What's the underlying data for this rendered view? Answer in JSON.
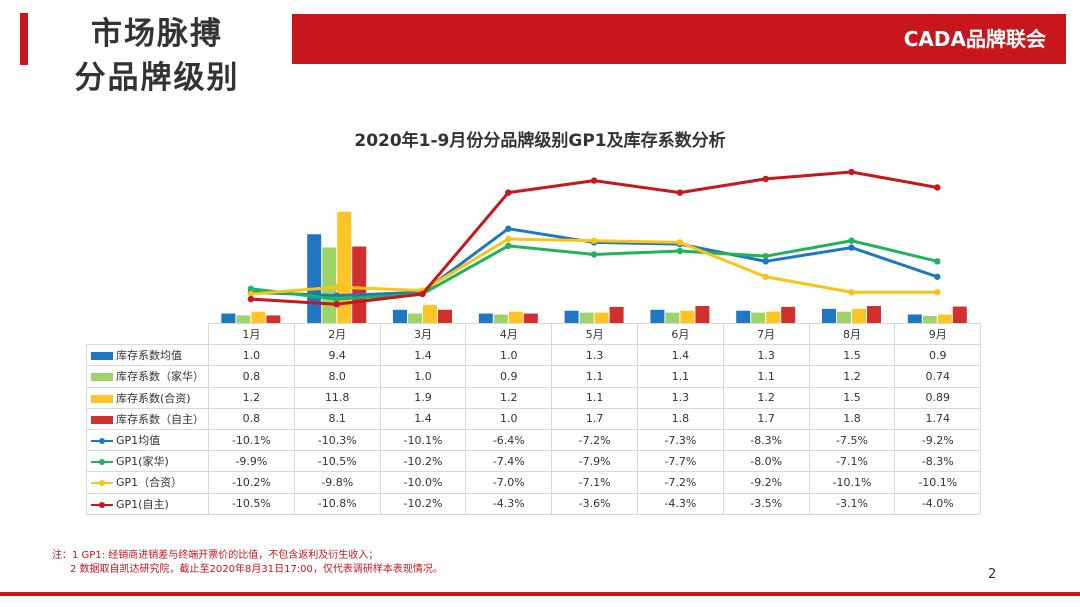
{
  "header": {
    "title_line1": "市场脉搏",
    "title_line2": "分品牌级别",
    "brand": "CADA品牌联会"
  },
  "colors": {
    "accent": "#c8161d",
    "inv_avg": "#1f77c4",
    "inv_joint": "#9ed36a",
    "inv_foreign": "#ffc425",
    "inv_own": "#d32f2f",
    "gp_avg": "#1f77c4",
    "gp_joint": "#21b35c",
    "gp_foreign": "#f5c518",
    "gp_own": "#c8161d"
  },
  "chart_data": {
    "type": "bar+line",
    "title": "2020年1-9月份分品牌级别GP1及库存系数分析",
    "categories": [
      "1月",
      "2月",
      "3月",
      "4月",
      "5月",
      "6月",
      "7月",
      "8月",
      "9月"
    ],
    "bar_series": [
      {
        "name": "库存系数均值",
        "color_key": "inv_avg",
        "values": [
          1.0,
          9.4,
          1.4,
          1.0,
          1.3,
          1.4,
          1.3,
          1.5,
          0.9
        ],
        "labels": [
          "1.0",
          "9.4",
          "1.4",
          "1.0",
          "1.3",
          "1.4",
          "1.3",
          "1.5",
          "0.9"
        ]
      },
      {
        "name": "库存系数（家华）",
        "color_key": "inv_joint",
        "values": [
          0.8,
          8.0,
          1.0,
          0.9,
          1.1,
          1.1,
          1.1,
          1.2,
          0.74
        ],
        "labels": [
          "0.8",
          "8.0",
          "1.0",
          "0.9",
          "1.1",
          "1.1",
          "1.1",
          "1.2",
          "0.74"
        ]
      },
      {
        "name": "库存系数(合资)",
        "color_key": "inv_foreign",
        "values": [
          1.2,
          11.8,
          1.9,
          1.2,
          1.1,
          1.3,
          1.2,
          1.5,
          0.89
        ],
        "labels": [
          "1.2",
          "11.8",
          "1.9",
          "1.2",
          "1.1",
          "1.3",
          "1.2",
          "1.5",
          "0.89"
        ]
      },
      {
        "name": "库存系数（自主）",
        "color_key": "inv_own",
        "values": [
          0.8,
          8.1,
          1.4,
          1.0,
          1.7,
          1.8,
          1.7,
          1.8,
          1.74
        ],
        "labels": [
          "0.8",
          "8.1",
          "1.4",
          "1.0",
          "1.7",
          "1.8",
          "1.7",
          "1.8",
          "1.74"
        ]
      }
    ],
    "line_series": [
      {
        "name": "GP1均值",
        "color_key": "gp_avg",
        "values": [
          -10.1,
          -10.3,
          -10.1,
          -6.4,
          -7.2,
          -7.3,
          -8.3,
          -7.5,
          -9.2
        ],
        "labels": [
          "-10.1%",
          "-10.3%",
          "-10.1%",
          "-6.4%",
          "-7.2%",
          "-7.3%",
          "-8.3%",
          "-7.5%",
          "-9.2%"
        ]
      },
      {
        "name": "GP1(家华)",
        "color_key": "gp_joint",
        "values": [
          -9.9,
          -10.5,
          -10.2,
          -7.4,
          -7.9,
          -7.7,
          -8.0,
          -7.1,
          -8.3
        ],
        "labels": [
          "-9.9%",
          "-10.5%",
          "-10.2%",
          "-7.4%",
          "-7.9%",
          "-7.7%",
          "-8.0%",
          "-7.1%",
          "-8.3%"
        ]
      },
      {
        "name": "GP1（合资）",
        "color_key": "gp_foreign",
        "values": [
          -10.2,
          -9.8,
          -10.0,
          -7.0,
          -7.1,
          -7.2,
          -9.2,
          -10.1,
          -10.1
        ],
        "labels": [
          "-10.2%",
          "-9.8%",
          "-10.0%",
          "-7.0%",
          "-7.1%",
          "-7.2%",
          "-9.2%",
          "-10.1%",
          "-10.1%"
        ]
      },
      {
        "name": "GP1(自主)",
        "color_key": "gp_own",
        "values": [
          -10.5,
          -10.8,
          -10.2,
          -4.3,
          -3.6,
          -4.3,
          -3.5,
          -3.1,
          -4.0
        ],
        "labels": [
          "-10.5%",
          "-10.8%",
          "-10.2%",
          "-4.3%",
          "-3.6%",
          "-4.3%",
          "-3.5%",
          "-3.1%",
          "-4.0%"
        ]
      }
    ],
    "bar_axis": {
      "ylim": [
        0,
        12.5
      ]
    },
    "line_axis": {
      "ylim": [
        -11.6,
        -2.4
      ]
    },
    "xlabel": "",
    "ylabel": ""
  },
  "notes": {
    "line1": "注：1  GP1: 经销商进销差与终端开票价的比值，不包含返利及衍生收入；",
    "line2": "2 数据取自凯达研究院，截止至2020年8月31日17:00，仅代表调研样本表现情况。"
  },
  "page_number": "2"
}
